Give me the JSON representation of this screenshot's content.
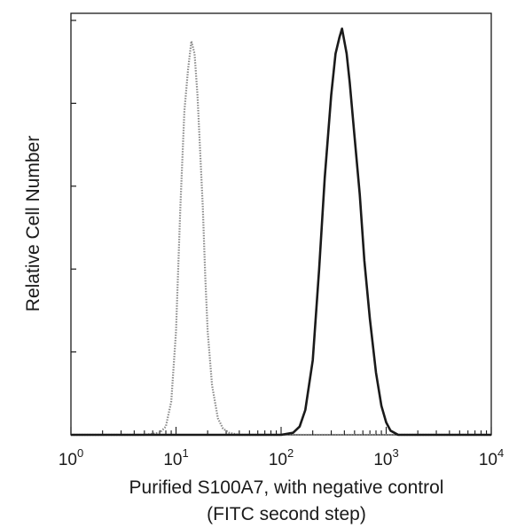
{
  "chart_data": {
    "type": "line",
    "title": "",
    "xlabel_line1": "Purified S100A7, with negative control",
    "xlabel_line2": "(FITC second step)",
    "ylabel": "Relative Cell Number",
    "x_scale": "log",
    "xlim": [
      1,
      10000
    ],
    "ylim": [
      0,
      100
    ],
    "grid": false,
    "legend": "none",
    "x_ticks": [
      {
        "base": "10",
        "exp": "0",
        "value": 1
      },
      {
        "base": "10",
        "exp": "1",
        "value": 10
      },
      {
        "base": "10",
        "exp": "2",
        "value": 100
      },
      {
        "base": "10",
        "exp": "3",
        "value": 1000
      },
      {
        "base": "10",
        "exp": "4",
        "value": 10000
      }
    ],
    "y_ticks": [
      0,
      20,
      40,
      60,
      80,
      100
    ],
    "series": [
      {
        "color": "#8a8a8a",
        "style": "dotted",
        "x": [
          1,
          5,
          7,
          8,
          9,
          10,
          11,
          12,
          13,
          14,
          15,
          16,
          17,
          18,
          19,
          20,
          22,
          25,
          28,
          32,
          40,
          60,
          100,
          1000,
          10000
        ],
        "y": [
          0,
          0,
          0.5,
          2,
          8,
          25,
          55,
          78,
          88,
          95,
          92,
          82,
          68,
          55,
          38,
          25,
          12,
          4,
          1.5,
          0.5,
          0,
          0,
          0,
          0,
          0
        ]
      },
      {
        "color": "#1a1a1a",
        "style": "solid",
        "x": [
          1,
          10,
          100,
          130,
          150,
          170,
          200,
          230,
          260,
          300,
          330,
          360,
          380,
          400,
          420,
          450,
          500,
          560,
          620,
          700,
          800,
          900,
          1000,
          1100,
          1300,
          10000
        ],
        "y": [
          0,
          0,
          0,
          0.5,
          2,
          6,
          18,
          40,
          62,
          82,
          92,
          96,
          98,
          95,
          92,
          85,
          72,
          58,
          42,
          28,
          15,
          7,
          3,
          1,
          0,
          0
        ]
      }
    ]
  }
}
